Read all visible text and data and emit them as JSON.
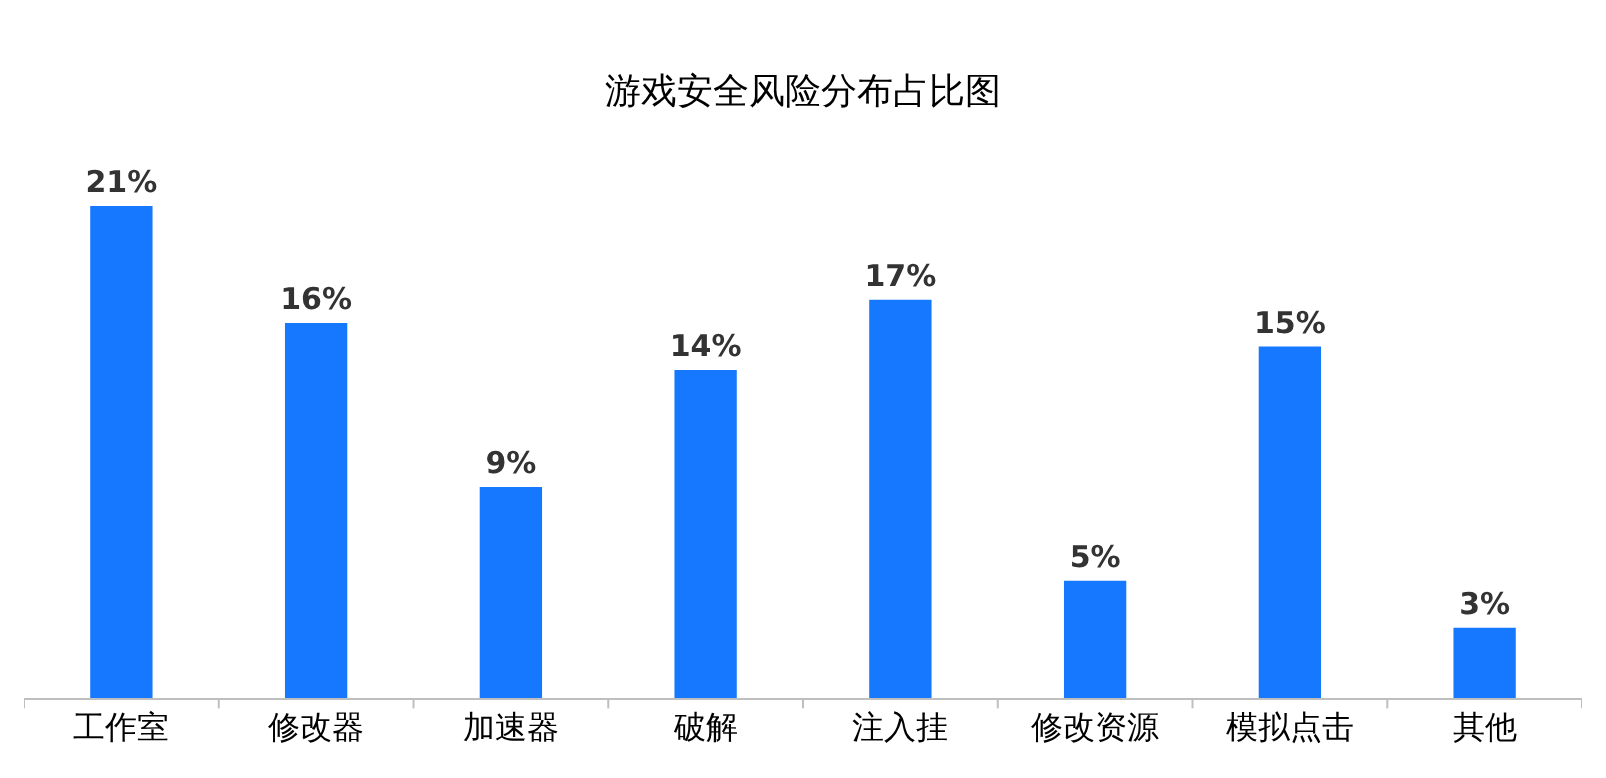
{
  "chart_data": {
    "type": "bar",
    "title": "游戏安全风险分布占比图",
    "categories": [
      "工作室",
      "修改器",
      "加速器",
      "破解",
      "注入挂",
      "修改资源",
      "模拟点击",
      "其他"
    ],
    "values": [
      21,
      16,
      9,
      14,
      17,
      5,
      15,
      3
    ],
    "value_labels": [
      "21%",
      "16%",
      "9%",
      "14%",
      "17%",
      "5%",
      "15%",
      "3%"
    ],
    "color": "#1677ff",
    "tick_labels": "x"
  }
}
